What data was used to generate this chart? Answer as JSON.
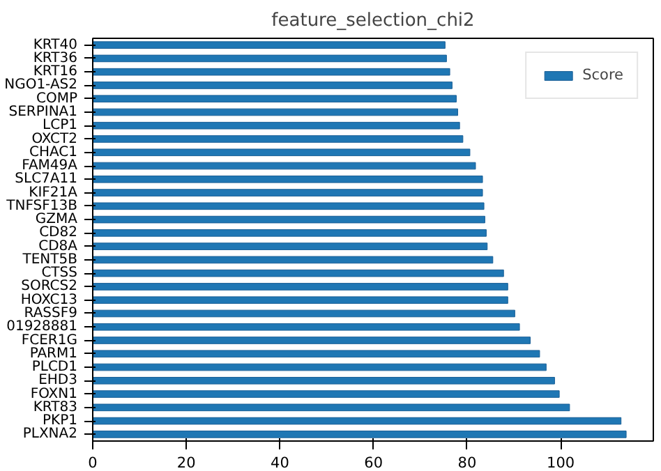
{
  "chart_data": {
    "type": "bar",
    "orientation": "horizontal",
    "title": "feature_selection_chi2",
    "categories": [
      "KRT40",
      "KRT36",
      "KRT16",
      "NGO1-AS2",
      "COMP",
      "SERPINA1",
      "LCP1",
      "OXCT2",
      "CHAC1",
      "FAM49A",
      "SLC7A11",
      "KIF21A",
      "TNFSF13B",
      "GZMA",
      "CD82",
      "CD8A",
      "TENT5B",
      "CTSS",
      "SORCS2",
      "HOXC13",
      "RASSF9",
      "01928881",
      "FCER1G",
      "PARM1",
      "PLCD1",
      "EHD3",
      "FOXN1",
      "KRT83",
      "PKP1",
      "PLXNA2"
    ],
    "series": [
      {
        "name": "Score",
        "color": "#1f77b4",
        "values": [
          75.3,
          75.6,
          76.3,
          76.8,
          77.7,
          78.0,
          78.4,
          79.1,
          80.6,
          81.8,
          83.3,
          83.3,
          83.6,
          83.8,
          84.1,
          84.3,
          85.5,
          87.8,
          88.7,
          88.7,
          90.2,
          91.2,
          93.5,
          95.5,
          96.9,
          98.7,
          99.7,
          101.9,
          112.9,
          114.0
        ]
      }
    ],
    "xlim": [
      0,
      119.8
    ],
    "xticks": [
      0,
      20,
      40,
      60,
      80,
      100
    ],
    "grid": false,
    "legend": "top right"
  }
}
